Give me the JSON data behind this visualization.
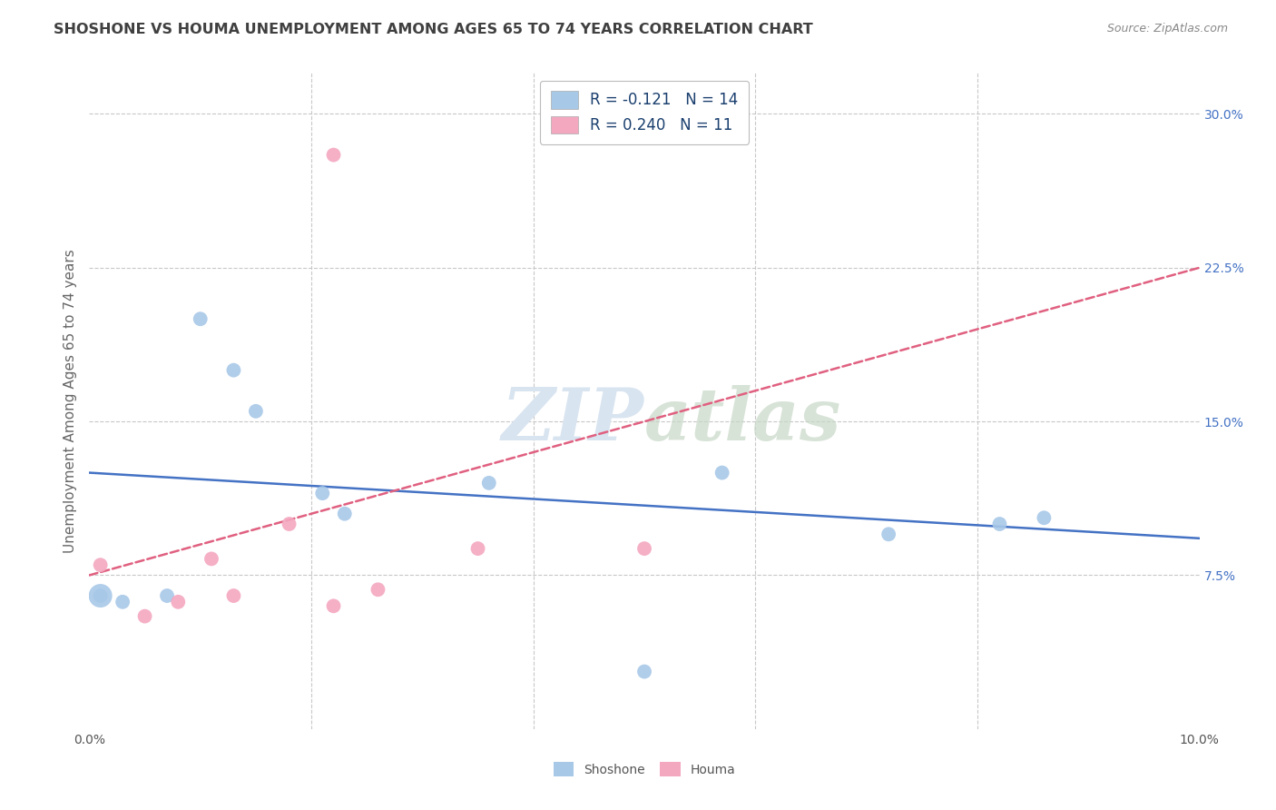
{
  "title": "SHOSHONE VS HOUMA UNEMPLOYMENT AMONG AGES 65 TO 74 YEARS CORRELATION CHART",
  "source": "Source: ZipAtlas.com",
  "ylabel": "Unemployment Among Ages 65 to 74 years",
  "xlim": [
    0.0,
    0.1
  ],
  "ylim": [
    0.0,
    0.32
  ],
  "shoshone_x": [
    0.001,
    0.003,
    0.007,
    0.01,
    0.013,
    0.015,
    0.021,
    0.023,
    0.036,
    0.05,
    0.057,
    0.072,
    0.082,
    0.086
  ],
  "shoshone_y": [
    0.065,
    0.062,
    0.065,
    0.2,
    0.175,
    0.155,
    0.115,
    0.105,
    0.12,
    0.028,
    0.125,
    0.095,
    0.1,
    0.103
  ],
  "houma_x": [
    0.001,
    0.005,
    0.008,
    0.011,
    0.013,
    0.018,
    0.022,
    0.026,
    0.035,
    0.05,
    0.022
  ],
  "houma_y": [
    0.08,
    0.055,
    0.062,
    0.083,
    0.065,
    0.1,
    0.06,
    0.068,
    0.088,
    0.088,
    0.28
  ],
  "shoshone_R": -0.121,
  "shoshone_N": 14,
  "houma_R": 0.24,
  "houma_N": 11,
  "shoshone_color": "#a8c8e8",
  "houma_color": "#f4a8c0",
  "shoshone_line_color": "#4472c4",
  "houma_line_color": "#e06080",
  "background_color": "#ffffff",
  "grid_color": "#c8c8c8",
  "title_color": "#404040",
  "source_color": "#888888",
  "watermark_color": "#d8e4f0",
  "scatter_size": 130,
  "scatter_size_large": 350,
  "ytick_vals": [
    0.075,
    0.15,
    0.225,
    0.3
  ],
  "ytick_lbls": [
    "7.5%",
    "15.0%",
    "22.5%",
    "30.0%"
  ]
}
